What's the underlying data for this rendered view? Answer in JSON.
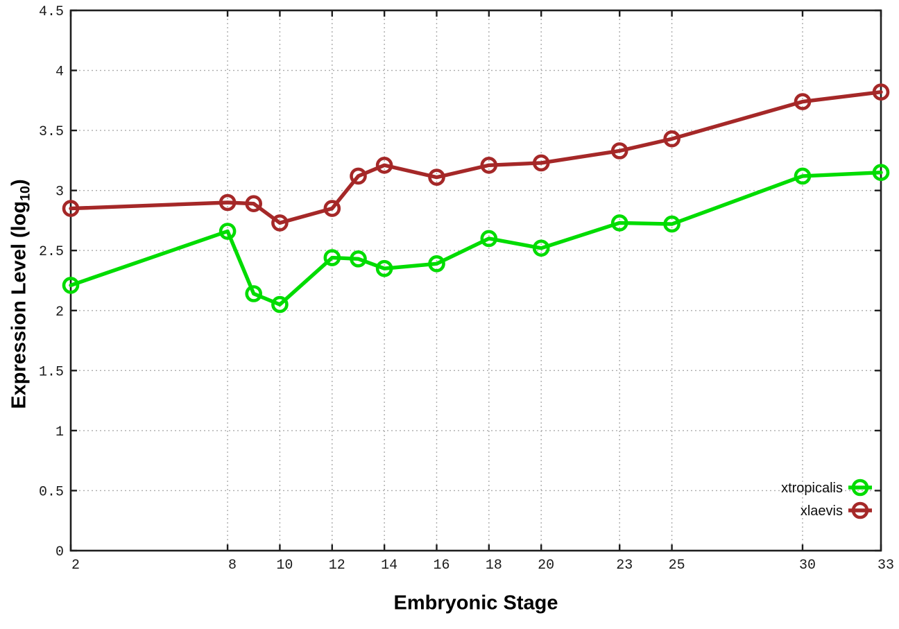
{
  "chart_data": {
    "type": "line",
    "title": "",
    "xlabel": "Embryonic Stage",
    "ylabel": "Expression Level (log10)",
    "ylabel_parts": {
      "prefix": "Expression Level (log",
      "subscript": "10",
      "suffix": ")"
    },
    "xlim": [
      2,
      33
    ],
    "ylim": [
      0,
      4.5
    ],
    "grid": true,
    "legend_position": "inside-bottom-right",
    "x": [
      2,
      8,
      9,
      10,
      12,
      13,
      14,
      16,
      18,
      20,
      23,
      25,
      30,
      33
    ],
    "xtick_values": [
      2,
      8,
      10,
      12,
      14,
      16,
      18,
      20,
      23,
      25,
      30,
      33
    ],
    "xtick_labels": [
      "2",
      "8",
      "10",
      "12",
      "14",
      "16",
      "18",
      "20",
      "23",
      "25",
      "30",
      "33"
    ],
    "ytick_values": [
      0,
      0.5,
      1,
      1.5,
      2,
      2.5,
      3,
      3.5,
      4,
      4.5
    ],
    "ytick_labels": [
      "0",
      "0.5",
      "1",
      "1.5",
      "2",
      "2.5",
      "3",
      "3.5",
      "4",
      "4.5"
    ],
    "series": [
      {
        "name": "xtropicalis",
        "color": "#00dc00",
        "values": [
          2.21,
          2.66,
          2.14,
          2.05,
          2.44,
          2.43,
          2.35,
          2.39,
          2.6,
          2.52,
          2.73,
          2.72,
          3.12,
          3.15
        ]
      },
      {
        "name": "xlaevis",
        "color": "#a52828",
        "values": [
          2.85,
          2.9,
          2.89,
          2.73,
          2.85,
          3.12,
          3.21,
          3.11,
          3.21,
          3.23,
          3.33,
          3.43,
          3.74,
          3.82
        ]
      }
    ],
    "colors": {
      "background": "#ffffff",
      "axis": "#1e1e1e",
      "grid": "#ababab",
      "tick_label": "#1b1b1b"
    }
  }
}
